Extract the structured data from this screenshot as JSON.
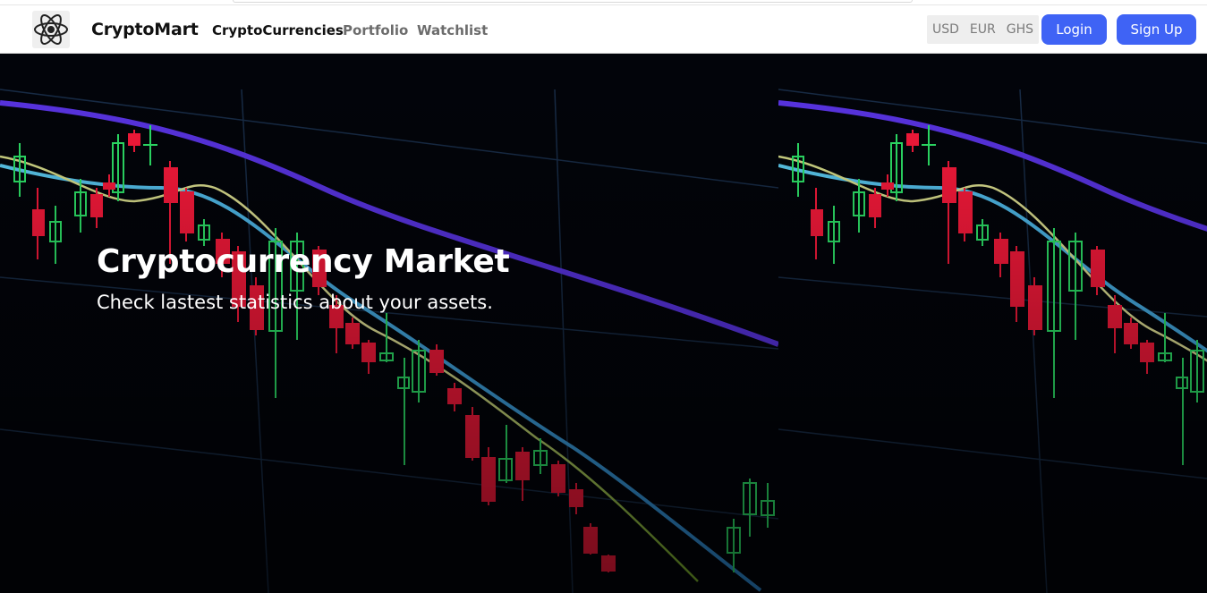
{
  "app": {
    "brand": "CryptoMart",
    "logo_icon": "atom-icon"
  },
  "nav": {
    "links": [
      {
        "label": "CryptoCurrencies",
        "active": true
      },
      {
        "label": "Portfolio",
        "active": false
      },
      {
        "label": "Watchlist",
        "active": false
      }
    ]
  },
  "currency": {
    "options": [
      "USD",
      "EUR",
      "GHS"
    ]
  },
  "auth": {
    "login_label": "Login",
    "signup_label": "Sign Up"
  },
  "hero": {
    "title": "Cryptocurrency Market",
    "subtitle": "Check lastest statistics about your assets.",
    "background": "candlestick-chart-image"
  },
  "colors": {
    "accent": "#3f63f5",
    "hero_bg": "#02040a",
    "candle_up": "#2ee86a",
    "candle_down": "#ff1a3c",
    "ma_purple": "#5b35e8",
    "ma_blue": "#56c8f2",
    "ma_yellow": "#e8e79a"
  }
}
